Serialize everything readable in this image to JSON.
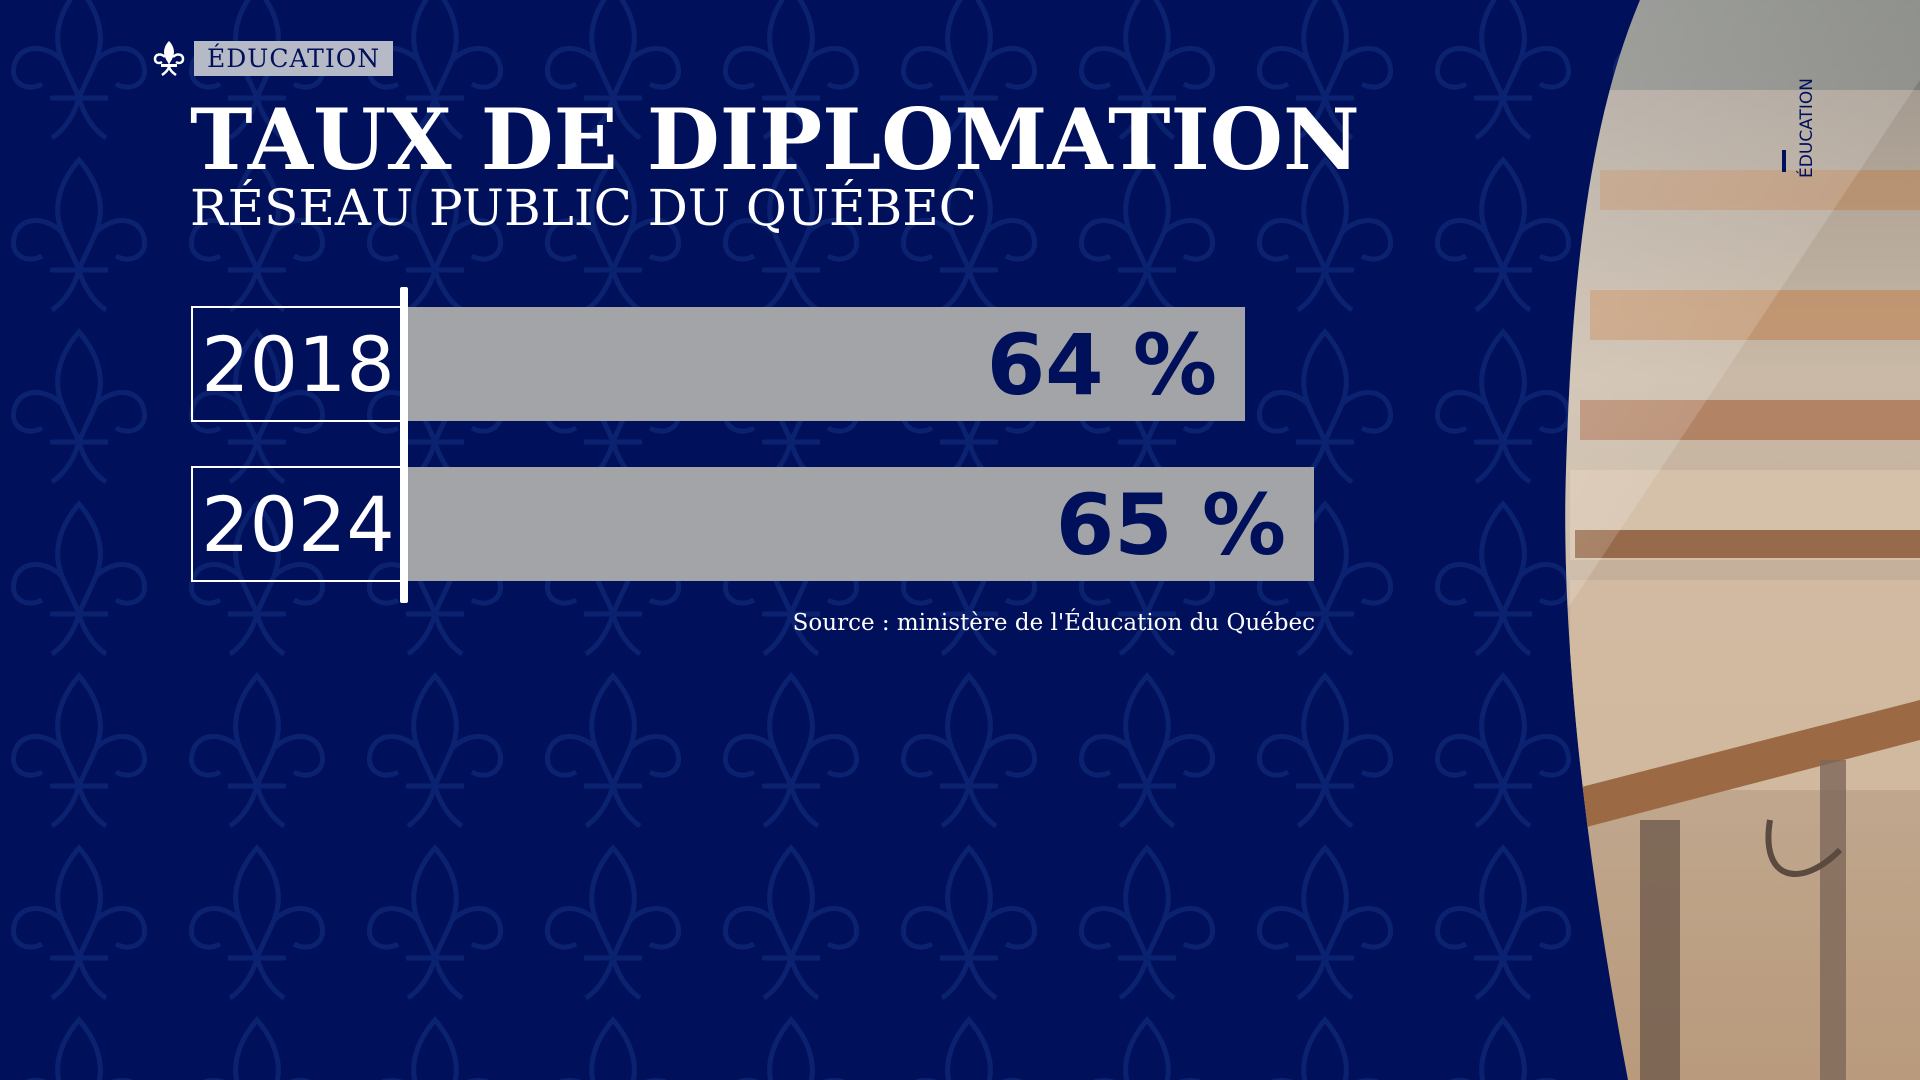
{
  "header": {
    "category_tag": "ÉDUCATION",
    "title": "TAUX DE DIPLOMATION",
    "subtitle": "RÉSEAU PUBLIC DU QUÉBEC"
  },
  "side_label": "ÉDUCATION",
  "source": "Source : ministère de l'Éducation du Québec",
  "colors": {
    "background": "#00105a",
    "bar": "#a3a4a8",
    "value_text": "#00105a",
    "year_text": "#ffffff"
  },
  "chart_data": {
    "type": "bar",
    "orientation": "horizontal",
    "title": "TAUX DE DIPLOMATION",
    "subtitle": "RÉSEAU PUBLIC DU QUÉBEC",
    "categories": [
      "2018",
      "2024"
    ],
    "values": [
      64,
      65
    ],
    "value_labels": [
      "64 %",
      "65 %"
    ],
    "unit": "%",
    "grid": false,
    "legend": "none"
  }
}
